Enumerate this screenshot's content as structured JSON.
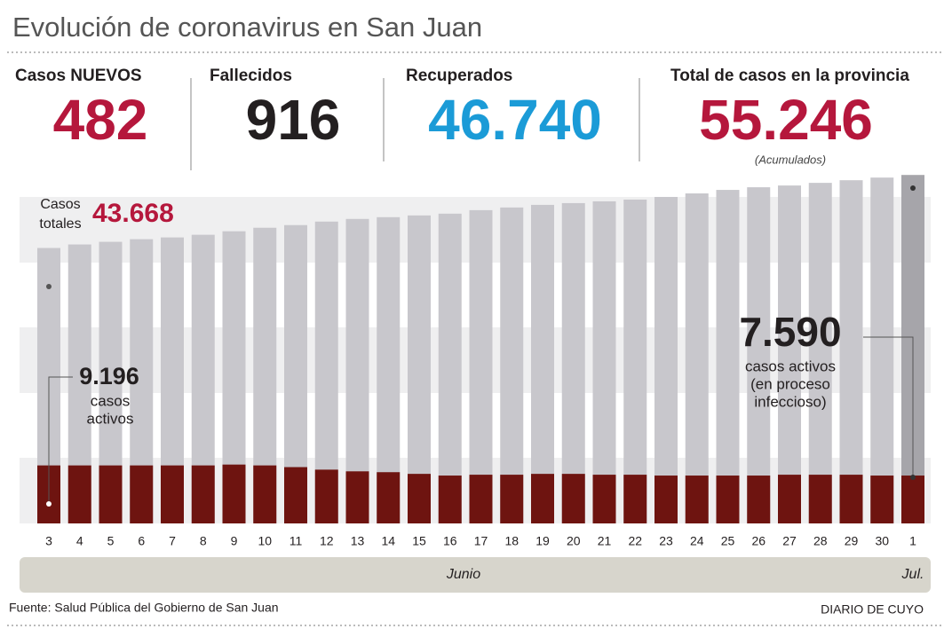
{
  "chart_data": {
    "type": "bar",
    "title": "Evolución de coronavirus en San Juan",
    "stats": [
      {
        "label": "Casos NUEVOS",
        "value": "482",
        "color": "#b5173c"
      },
      {
        "label": "Fallecidos",
        "value": "916",
        "color": "#231f20"
      },
      {
        "label": "Recuperados",
        "value": "46.740",
        "color": "#1b9bd7"
      },
      {
        "label": "Total de casos en la provincia",
        "value": "55.246",
        "color": "#b5173c",
        "note": "(Acumulados)"
      }
    ],
    "categories": [
      "3",
      "4",
      "5",
      "6",
      "7",
      "8",
      "9",
      "10",
      "11",
      "12",
      "13",
      "14",
      "15",
      "16",
      "17",
      "18",
      "19",
      "20",
      "21",
      "22",
      "23",
      "24",
      "25",
      "26",
      "27",
      "28",
      "29",
      "30",
      "1"
    ],
    "months": [
      "Junio",
      "Jul."
    ],
    "series": [
      {
        "color": "#c8c7cc",
        "highlight_color": "#a6a5aa",
        "values": [
          43668,
          44226,
          44645,
          45063,
          45342,
          45761,
          46319,
          46877,
          47296,
          47854,
          48272,
          48551,
          48830,
          49109,
          49667,
          50086,
          50504,
          50783,
          51062,
          51341,
          51760,
          52318,
          52876,
          53294,
          53573,
          53992,
          54410,
          54829,
          55246
        ],
        "value_labels": [
          "43.668",
          null,
          null,
          null,
          null,
          null,
          null,
          null,
          null,
          null,
          null,
          null,
          null,
          null,
          null,
          null,
          null,
          null,
          null,
          null,
          null,
          null,
          null,
          null,
          null,
          null,
          null,
          null,
          null
        ]
      },
      {
        "color": "#6e1410",
        "highlight_color": "#6e1410",
        "values": [
          9196,
          9196,
          9196,
          9196,
          9196,
          9196,
          9330,
          9196,
          8928,
          8526,
          8258,
          8124,
          7856,
          7590,
          7722,
          7722,
          7856,
          7856,
          7722,
          7722,
          7590,
          7590,
          7590,
          7590,
          7722,
          7722,
          7722,
          7590,
          7590
        ],
        "value_labels": [
          "9.196",
          null,
          null,
          null,
          null,
          null,
          null,
          null,
          null,
          null,
          null,
          null,
          null,
          null,
          null,
          null,
          null,
          null,
          null,
          null,
          null,
          null,
          null,
          null,
          null,
          null,
          null,
          null,
          "7.590"
        ]
      }
    ],
    "ylim": [
      0,
      60000
    ],
    "annotations": {
      "total_label": [
        "Casos",
        "totales"
      ],
      "active_left": [
        "casos",
        "activos"
      ],
      "active_right": [
        "casos activos",
        "(en proceso",
        "infeccioso)"
      ]
    },
    "source": "Fuente: Salud Pública del Gobierno de San Juan",
    "credit": "DIARIO DE CUYO"
  }
}
